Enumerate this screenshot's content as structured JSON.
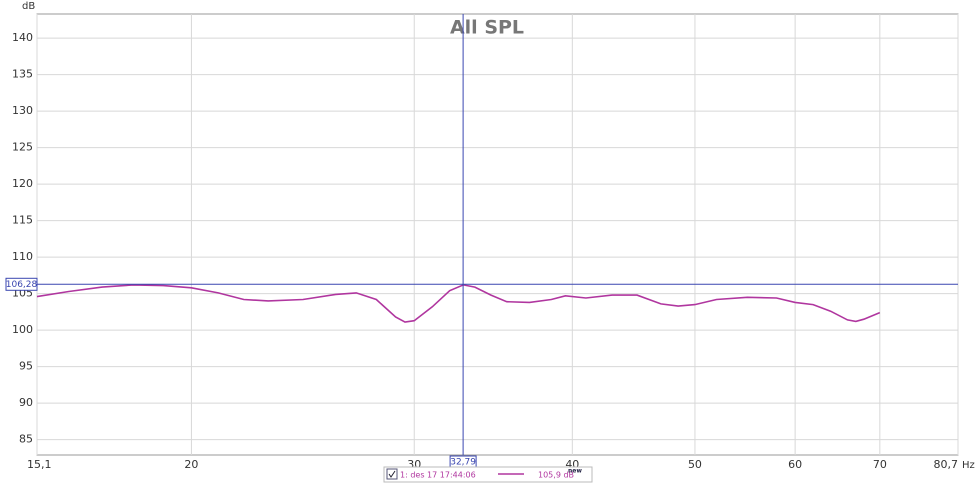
{
  "chart_data": {
    "type": "line",
    "title": "All SPL",
    "y_unit": "dB",
    "x_unit": "Hz",
    "xscale": "log",
    "grid": true,
    "xlim": [
      15.1,
      80.7
    ],
    "ylim": [
      82.9,
      143.3
    ],
    "xticks": [
      {
        "value": 15.1,
        "label": "15,1"
      },
      20,
      30,
      40,
      50,
      60,
      70,
      {
        "value": 80.7,
        "label": "80,7"
      }
    ],
    "yticks": [
      85,
      90,
      95,
      100,
      105,
      110,
      115,
      120,
      125,
      130,
      135,
      140
    ],
    "cursor": {
      "color": "#3a46b0",
      "x": {
        "value": 32.79,
        "label": "32,79"
      },
      "y": {
        "value": 106.28,
        "label": "106,28"
      }
    },
    "series": [
      {
        "name": "1: des 17 17:44:06",
        "color": "#b0369f",
        "legend_value": "105,9 dB",
        "legend_badge": "new",
        "x": [
          15.1,
          16,
          17,
          18,
          19,
          20,
          21,
          22,
          23,
          24.5,
          26,
          27,
          28,
          29,
          29.5,
          30,
          31,
          32,
          32.8,
          33.5,
          34.5,
          35.5,
          37,
          38.5,
          39.5,
          41,
          43,
          45,
          47,
          48.5,
          50,
          52,
          55,
          58,
          60,
          62,
          64,
          66,
          67,
          68,
          70
        ],
        "values": [
          104.6,
          105.3,
          105.9,
          106.2,
          106.1,
          105.8,
          105.1,
          104.2,
          104.0,
          104.2,
          104.9,
          105.1,
          104.2,
          101.8,
          101.1,
          101.3,
          103.2,
          105.4,
          106.2,
          105.9,
          104.8,
          103.9,
          103.8,
          104.2,
          104.7,
          104.4,
          104.8,
          104.8,
          103.6,
          103.3,
          103.5,
          104.2,
          104.5,
          104.4,
          103.8,
          103.5,
          102.6,
          101.4,
          101.2,
          101.5,
          102.4
        ]
      }
    ]
  }
}
